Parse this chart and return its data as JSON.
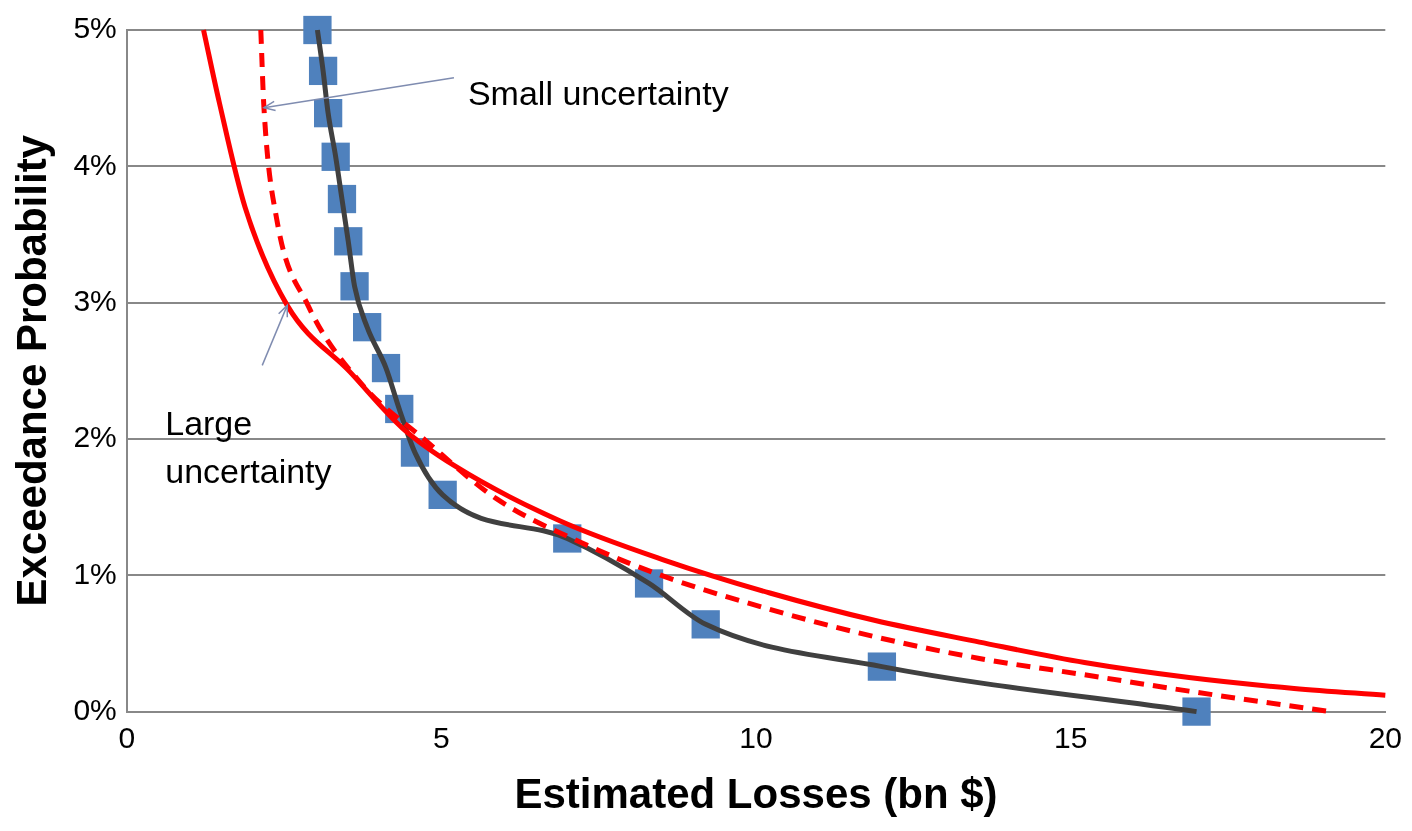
{
  "chart_data": {
    "type": "line",
    "xlabel": "Estimated Losses (bn $)",
    "ylabel": "Exceedance Probability",
    "xlim": [
      0,
      20
    ],
    "xticks": [
      0,
      5,
      10,
      15,
      20
    ],
    "ylim": [
      0,
      5
    ],
    "yticks": [
      {
        "value": 0,
        "label": "0%"
      },
      {
        "value": 1,
        "label": "1%"
      },
      {
        "value": 2,
        "label": "2%"
      },
      {
        "value": 3,
        "label": "3%"
      },
      {
        "value": 4,
        "label": "4%"
      },
      {
        "value": 5,
        "label": "5%"
      }
    ],
    "grid": "y",
    "legend": false,
    "series": [
      {
        "type": "line",
        "color": "#ff0000",
        "line_style": "solid",
        "marker": "none",
        "x": [
          1.22,
          1.47,
          1.88,
          2.55,
          3.55,
          4.38,
          5.22,
          6.88,
          8.55,
          10.22,
          11.88,
          13.55,
          15.22,
          16.88,
          18.55,
          20
        ],
        "values": [
          5.0,
          4.47,
          3.7,
          2.98,
          2.49,
          2.08,
          1.8,
          1.4,
          1.11,
          0.87,
          0.67,
          0.51,
          0.36,
          0.25,
          0.17,
          0.12
        ]
      },
      {
        "type": "line",
        "color": "#ff0000",
        "line_style": "dashed",
        "marker": "none",
        "x": [
          2.13,
          2.18,
          2.38,
          2.88,
          3.72,
          4.72,
          5.88,
          7.22,
          8.55,
          10.22,
          11.88,
          13.55,
          15.22,
          16.88,
          19.13
        ],
        "values": [
          5.0,
          4.43,
          3.62,
          2.98,
          2.41,
          2.0,
          1.56,
          1.24,
          0.99,
          0.75,
          0.55,
          0.39,
          0.27,
          0.15,
          0.0
        ]
      },
      {
        "type": "line",
        "color": "#404040",
        "line_style": "solid",
        "marker": "none",
        "x": [
          3.03,
          3.12,
          3.2,
          3.32,
          3.42,
          3.52,
          3.62,
          3.82,
          4.12,
          4.33,
          4.58,
          5.02,
          7.0,
          8.3,
          9.2,
          12.0,
          17.0
        ],
        "values": [
          5.0,
          4.7,
          4.39,
          4.07,
          3.76,
          3.45,
          3.12,
          2.82,
          2.52,
          2.22,
          1.9,
          1.59,
          1.27,
          0.94,
          0.64,
          0.33,
          0.0
        ]
      },
      {
        "type": "scatter",
        "color": "#4f81bd",
        "marker": "square",
        "x": [
          3.03,
          3.12,
          3.2,
          3.32,
          3.42,
          3.52,
          3.62,
          3.82,
          4.12,
          4.33,
          4.58,
          5.02,
          7.0,
          8.3,
          9.2,
          12.0,
          17.0
        ],
        "values": [
          5.0,
          4.7,
          4.39,
          4.07,
          3.76,
          3.45,
          3.12,
          2.82,
          2.52,
          2.22,
          1.9,
          1.59,
          1.27,
          0.94,
          0.64,
          0.33,
          0.0
        ]
      }
    ],
    "annotations": [
      {
        "text": "Small uncertainty",
        "x": 2.18,
        "y": 4.43
      },
      {
        "text": "Large uncertainty",
        "x": 2.55,
        "y": 2.98
      }
    ]
  }
}
